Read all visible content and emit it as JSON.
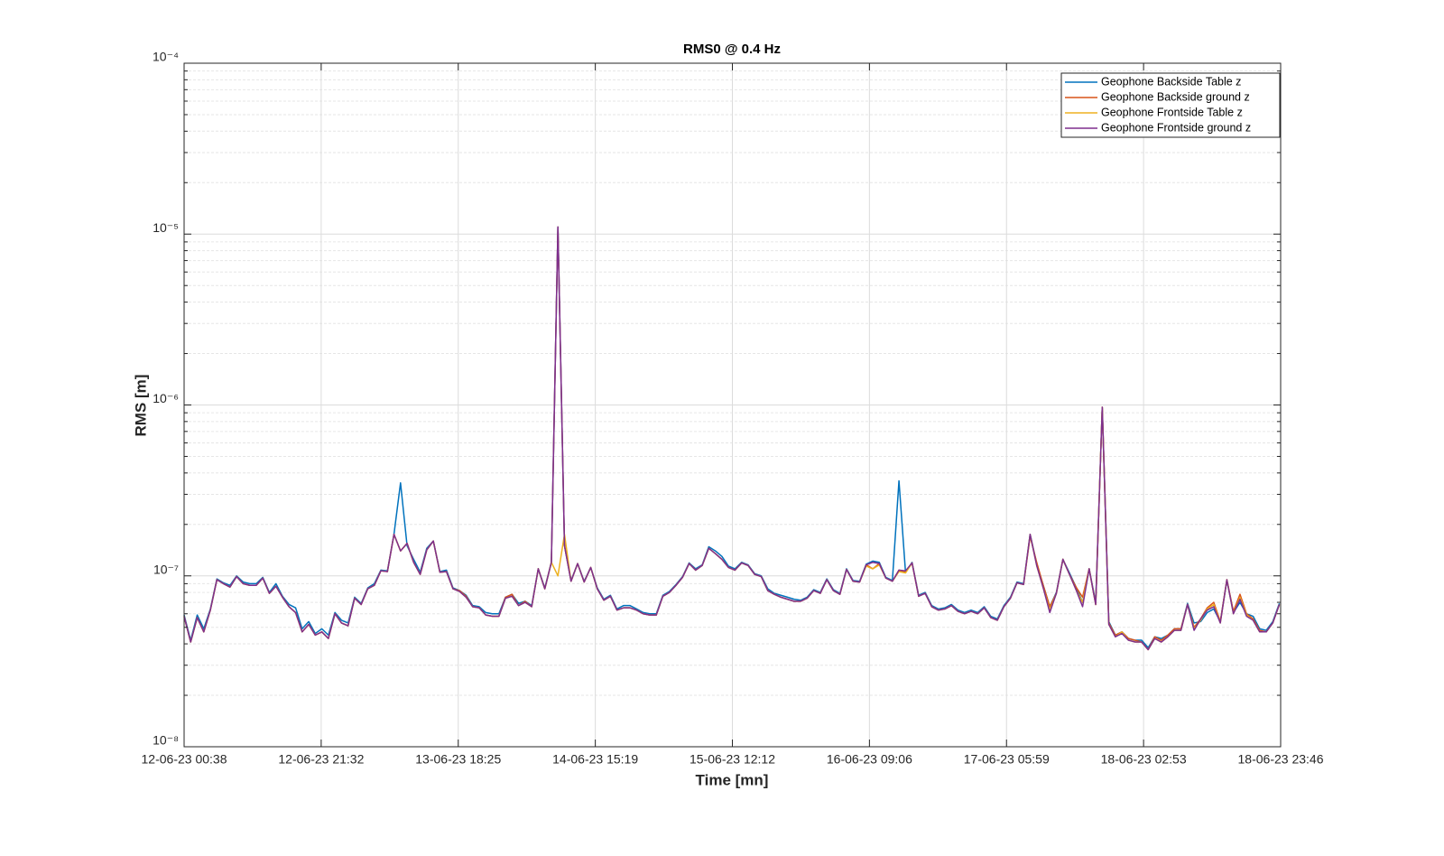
{
  "chart_data": {
    "type": "line",
    "title": "RMS0 @ 0.4 Hz",
    "x_label": "Time [mn]",
    "y_label": "RMS [m]",
    "log_y": true,
    "grid": true,
    "minor_grid": true,
    "legend": "top-right",
    "xlim": [
      0,
      167.2
    ],
    "xticks": [
      {
        "value": 0,
        "label": "12-06-23 00:38"
      },
      {
        "value": 20.9,
        "label": "12-06-23 21:32"
      },
      {
        "value": 41.8,
        "label": "13-06-23 18:25"
      },
      {
        "value": 62.7,
        "label": "14-06-23 15:19"
      },
      {
        "value": 83.6,
        "label": "15-06-23 12:12"
      },
      {
        "value": 104.5,
        "label": "16-06-23 09:06"
      },
      {
        "value": 125.4,
        "label": "17-06-23 05:59"
      },
      {
        "value": 146.3,
        "label": "18-06-23 02:53"
      },
      {
        "value": 167.2,
        "label": "18-06-23 23:46"
      }
    ],
    "ylim": [
      1e-08,
      0.0001
    ],
    "yticks": [
      {
        "value": 1e-08,
        "label": "10⁻⁸"
      },
      {
        "value": 1e-07,
        "label": "10⁻⁷"
      },
      {
        "value": 1e-06,
        "label": "10⁻⁶"
      },
      {
        "value": 1e-05,
        "label": "10⁻⁵"
      },
      {
        "value": 0.0001,
        "label": "10⁻⁴"
      }
    ],
    "x": [
      0,
      1,
      2,
      3,
      4,
      5,
      6,
      7,
      8,
      9,
      10,
      11,
      12,
      13,
      14,
      15,
      16,
      17,
      18,
      19,
      20,
      21,
      22,
      23,
      24,
      25,
      26,
      27,
      28,
      29,
      30,
      31,
      32,
      33,
      34,
      35,
      36,
      37,
      38,
      39,
      40,
      41,
      42,
      43,
      44,
      45,
      46,
      47,
      48,
      49,
      50,
      51,
      52,
      53,
      54,
      55,
      56,
      57,
      58,
      59,
      60,
      61,
      62,
      63,
      64,
      65,
      66,
      67,
      68,
      69,
      70,
      71,
      72,
      73,
      74,
      75,
      76,
      77,
      78,
      79,
      80,
      81,
      82,
      83,
      84,
      85,
      86,
      87,
      88,
      89,
      90,
      91,
      92,
      93,
      94,
      95,
      96,
      97,
      98,
      99,
      100,
      101,
      102,
      103,
      104,
      105,
      106,
      107,
      108,
      109,
      110,
      111,
      112,
      113,
      114,
      115,
      116,
      117,
      118,
      119,
      120,
      121,
      122,
      123,
      124,
      125,
      126,
      127,
      128,
      129,
      130,
      131,
      132,
      133,
      134,
      135,
      136,
      137,
      138,
      139,
      140,
      141,
      142,
      143,
      144,
      145,
      146,
      147,
      148,
      149,
      150,
      151,
      152,
      153,
      154,
      155,
      156,
      157,
      158,
      159,
      160,
      161,
      162,
      163,
      164,
      165,
      166,
      167
    ],
    "series": [
      {
        "name": "Geophone Backside Table z",
        "color": "#0072bd",
        "values": [
          5.9e-08,
          4.2e-08,
          5.9e-08,
          4.9e-08,
          6.4e-08,
          9.6e-08,
          9.1e-08,
          8.8e-08,
          1e-07,
          9.2e-08,
          9e-08,
          9e-08,
          9.8e-08,
          8e-08,
          9e-08,
          7.6e-08,
          6.8e-08,
          6.5e-08,
          4.9e-08,
          5.4e-08,
          4.6e-08,
          4.9e-08,
          4.5e-08,
          6.1e-08,
          5.5e-08,
          5.3e-08,
          7.5e-08,
          6.9e-08,
          8.5e-08,
          9e-08,
          1.08e-07,
          1.07e-07,
          1.75e-07,
          3.5e-07,
          1.5e-07,
          1.25e-07,
          1.05e-07,
          1.45e-07,
          1.6e-07,
          1.06e-07,
          1.08e-07,
          8.5e-08,
          8.2e-08,
          7.7e-08,
          6.7e-08,
          6.6e-08,
          6.1e-08,
          6e-08,
          6e-08,
          7.5e-08,
          7.8e-08,
          6.9e-08,
          7.1e-08,
          6.7e-08,
          1.1e-07,
          8.5e-08,
          1.2e-07,
          1.1e-05,
          1.5e-07,
          9.4e-08,
          1.18e-07,
          9.3e-08,
          1.12e-07,
          8.5e-08,
          7.3e-08,
          7.7e-08,
          6.4e-08,
          6.7e-08,
          6.7e-08,
          6.4e-08,
          6.1e-08,
          6e-08,
          6e-08,
          7.7e-08,
          8.1e-08,
          8.9e-08,
          9.9e-08,
          1.19e-07,
          1.1e-07,
          1.16e-07,
          1.48e-07,
          1.4e-07,
          1.3e-07,
          1.14e-07,
          1.1e-07,
          1.2e-07,
          1.16e-07,
          1.03e-07,
          1e-07,
          8.4e-08,
          7.9e-08,
          7.7e-08,
          7.5e-08,
          7.3e-08,
          7.2e-08,
          7.5e-08,
          8.3e-08,
          8e-08,
          9.6e-08,
          8.3e-08,
          7.9e-08,
          1.1e-07,
          9.4e-08,
          9.3e-08,
          1.17e-07,
          1.22e-07,
          1.2e-07,
          9.8e-08,
          9.4e-08,
          3.6e-07,
          1.05e-07,
          1.2e-07,
          7.7e-08,
          8e-08,
          6.7e-08,
          6.4e-08,
          6.5e-08,
          6.8e-08,
          6.3e-08,
          6.1e-08,
          6.3e-08,
          6.1e-08,
          6.6e-08,
          5.8e-08,
          5.6e-08,
          6.7e-08,
          7.5e-08,
          9.2e-08,
          9e-08,
          1.75e-07,
          1.18e-07,
          8.8e-08,
          6.6e-08,
          8e-08,
          1.25e-07,
          1.04e-07,
          8.6e-08,
          7e-08,
          1.1e-07,
          7e-08,
          9.7e-07,
          5.4e-08,
          4.5e-08,
          4.7e-08,
          4.3e-08,
          4.2e-08,
          4.2e-08,
          3.8e-08,
          4.4e-08,
          4.3e-08,
          4.5e-08,
          4.9e-08,
          4.9e-08,
          6.9e-08,
          5.3e-08,
          5.4e-08,
          6.1e-08,
          6.4e-08,
          5.4e-08,
          9.4e-08,
          6.1e-08,
          7e-08,
          6e-08,
          5.8e-08,
          4.9e-08,
          4.8e-08,
          5.4e-08,
          6.9e-08
        ]
      },
      {
        "name": "Geophone Backside ground z",
        "color": "#d95319",
        "values": [
          5.8e-08,
          4.1e-08,
          5.7e-08,
          4.7e-08,
          6.3e-08,
          9.5e-08,
          9e-08,
          8.6e-08,
          9.9e-08,
          9e-08,
          8.8e-08,
          8.8e-08,
          9.7e-08,
          7.9e-08,
          8.7e-08,
          7.5e-08,
          6.6e-08,
          6.1e-08,
          4.7e-08,
          5.2e-08,
          4.5e-08,
          4.7e-08,
          4.3e-08,
          6e-08,
          5.3e-08,
          5.1e-08,
          7.4e-08,
          6.8e-08,
          8.4e-08,
          8.8e-08,
          1.07e-07,
          1.06e-07,
          1.75e-07,
          1.4e-07,
          1.55e-07,
          1.2e-07,
          1.02e-07,
          1.42e-07,
          1.6e-07,
          1.05e-07,
          1.06e-07,
          8.4e-08,
          8.2e-08,
          7.6e-08,
          6.6e-08,
          6.5e-08,
          5.9e-08,
          5.8e-08,
          5.8e-08,
          7.5e-08,
          7.8e-08,
          6.7e-08,
          7.1e-08,
          6.6e-08,
          1.1e-07,
          8.4e-08,
          1.2e-07,
          1.1e-05,
          1.5e-07,
          9.3e-08,
          1.18e-07,
          9.2e-08,
          1.12e-07,
          8.4e-08,
          7.2e-08,
          7.6e-08,
          6.3e-08,
          6.5e-08,
          6.5e-08,
          6.3e-08,
          6e-08,
          5.9e-08,
          5.9e-08,
          7.6e-08,
          8e-08,
          8.8e-08,
          9.8e-08,
          1.18e-07,
          1.08e-07,
          1.15e-07,
          1.45e-07,
          1.35e-07,
          1.25e-07,
          1.12e-07,
          1.08e-07,
          1.19e-07,
          1.15e-07,
          1.02e-07,
          9.9e-08,
          8.2e-08,
          7.8e-08,
          7.5e-08,
          7.3e-08,
          7.1e-08,
          7.1e-08,
          7.4e-08,
          8.2e-08,
          7.9e-08,
          9.5e-08,
          8.2e-08,
          7.8e-08,
          1.09e-07,
          9.3e-08,
          9.2e-08,
          1.16e-07,
          1.1e-07,
          1.18e-07,
          9.7e-08,
          9.3e-08,
          1.08e-07,
          1.05e-07,
          1.19e-07,
          7.6e-08,
          7.9e-08,
          6.6e-08,
          6.3e-08,
          6.4e-08,
          6.7e-08,
          6.2e-08,
          6e-08,
          6.2e-08,
          6e-08,
          6.5e-08,
          5.7e-08,
          5.5e-08,
          6.6e-08,
          7.4e-08,
          9.1e-08,
          8.9e-08,
          1.7e-07,
          1.2e-07,
          8.8e-08,
          6.6e-08,
          7.9e-08,
          1.25e-07,
          1.02e-07,
          8.6e-08,
          7.5e-08,
          1.1e-07,
          6.8e-08,
          9.7e-07,
          5.3e-08,
          4.5e-08,
          4.7e-08,
          4.3e-08,
          4.2e-08,
          4.1e-08,
          3.7e-08,
          4.4e-08,
          4.2e-08,
          4.5e-08,
          4.9e-08,
          4.9e-08,
          6.8e-08,
          5e-08,
          5.6e-08,
          6.5e-08,
          7e-08,
          5.4e-08,
          9.5e-08,
          6.2e-08,
          7.8e-08,
          6e-08,
          5.6e-08,
          4.8e-08,
          4.7e-08,
          5.3e-08,
          6.8e-08
        ]
      },
      {
        "name": "Geophone Frontside Table z",
        "color": "#edb120",
        "values": [
          5.8e-08,
          4.1e-08,
          5.7e-08,
          4.7e-08,
          6.3e-08,
          9.5e-08,
          9e-08,
          8.6e-08,
          9.9e-08,
          9e-08,
          8.8e-08,
          8.8e-08,
          9.7e-08,
          7.9e-08,
          8.7e-08,
          7.5e-08,
          6.6e-08,
          6.1e-08,
          4.7e-08,
          5.2e-08,
          4.5e-08,
          4.7e-08,
          4.3e-08,
          6e-08,
          5.3e-08,
          5.1e-08,
          7.4e-08,
          6.8e-08,
          8.4e-08,
          8.8e-08,
          1.07e-07,
          1.06e-07,
          1.75e-07,
          1.4e-07,
          1.55e-07,
          1.2e-07,
          1.02e-07,
          1.42e-07,
          1.6e-07,
          1.05e-07,
          1.06e-07,
          8.4e-08,
          8.1e-08,
          7.5e-08,
          6.6e-08,
          6.5e-08,
          5.9e-08,
          5.8e-08,
          5.8e-08,
          7.4e-08,
          7.6e-08,
          6.7e-08,
          7e-08,
          6.6e-08,
          1.1e-07,
          8.4e-08,
          1.2e-07,
          1e-07,
          1.75e-07,
          9.3e-08,
          1.18e-07,
          9.2e-08,
          1.12e-07,
          8.4e-08,
          7.2e-08,
          7.6e-08,
          6.3e-08,
          6.5e-08,
          6.5e-08,
          6.3e-08,
          6e-08,
          5.9e-08,
          5.9e-08,
          7.6e-08,
          8e-08,
          8.8e-08,
          9.8e-08,
          1.18e-07,
          1.08e-07,
          1.15e-07,
          1.45e-07,
          1.35e-07,
          1.25e-07,
          1.12e-07,
          1.08e-07,
          1.19e-07,
          1.15e-07,
          1.02e-07,
          9.9e-08,
          8.2e-08,
          7.8e-08,
          7.5e-08,
          7.3e-08,
          7.1e-08,
          7.1e-08,
          7.4e-08,
          8.2e-08,
          7.9e-08,
          9.5e-08,
          8.2e-08,
          7.8e-08,
          1.09e-07,
          9.3e-08,
          9.2e-08,
          1.14e-07,
          1.1e-07,
          1.16e-07,
          9.7e-08,
          9.3e-08,
          1.06e-07,
          1.04e-07,
          1.19e-07,
          7.6e-08,
          7.9e-08,
          6.6e-08,
          6.3e-08,
          6.4e-08,
          6.7e-08,
          6.2e-08,
          6e-08,
          6.2e-08,
          6e-08,
          6.5e-08,
          5.7e-08,
          5.5e-08,
          6.6e-08,
          7.4e-08,
          9.1e-08,
          8.9e-08,
          1.75e-07,
          1.15e-07,
          8.5e-08,
          6.3e-08,
          7.9e-08,
          1.25e-07,
          1.02e-07,
          8.3e-08,
          7e-08,
          1.1e-07,
          6.8e-08,
          9.7e-07,
          5.2e-08,
          4.4e-08,
          4.7e-08,
          4.2e-08,
          4.1e-08,
          4.1e-08,
          3.7e-08,
          4.3e-08,
          4.1e-08,
          4.4e-08,
          4.8e-08,
          4.8e-08,
          6.8e-08,
          4.9e-08,
          5.5e-08,
          6.4e-08,
          6.8e-08,
          5.3e-08,
          9.5e-08,
          6e-08,
          7.5e-08,
          5.9e-08,
          5.5e-08,
          4.7e-08,
          4.7e-08,
          5.3e-08,
          6.8e-08
        ]
      },
      {
        "name": "Geophone Frontside ground z",
        "color": "#7e2f8e",
        "values": [
          5.8e-08,
          4.1e-08,
          5.7e-08,
          4.7e-08,
          6.3e-08,
          9.5e-08,
          9e-08,
          8.6e-08,
          9.9e-08,
          9e-08,
          8.8e-08,
          8.8e-08,
          9.7e-08,
          7.9e-08,
          8.7e-08,
          7.5e-08,
          6.6e-08,
          6.1e-08,
          4.7e-08,
          5.2e-08,
          4.5e-08,
          4.7e-08,
          4.3e-08,
          6e-08,
          5.3e-08,
          5.1e-08,
          7.4e-08,
          6.8e-08,
          8.4e-08,
          8.8e-08,
          1.07e-07,
          1.06e-07,
          1.75e-07,
          1.4e-07,
          1.55e-07,
          1.2e-07,
          1.02e-07,
          1.42e-07,
          1.6e-07,
          1.05e-07,
          1.06e-07,
          8.4e-08,
          8.1e-08,
          7.5e-08,
          6.6e-08,
          6.5e-08,
          5.9e-08,
          5.8e-08,
          5.8e-08,
          7.4e-08,
          7.6e-08,
          6.7e-08,
          7e-08,
          6.6e-08,
          1.1e-07,
          8.4e-08,
          1.2e-07,
          1.1e-05,
          1.5e-07,
          9.3e-08,
          1.18e-07,
          9.2e-08,
          1.12e-07,
          8.4e-08,
          7.2e-08,
          7.6e-08,
          6.3e-08,
          6.5e-08,
          6.5e-08,
          6.3e-08,
          6e-08,
          5.9e-08,
          5.9e-08,
          7.6e-08,
          8e-08,
          8.8e-08,
          9.8e-08,
          1.18e-07,
          1.08e-07,
          1.15e-07,
          1.45e-07,
          1.35e-07,
          1.25e-07,
          1.12e-07,
          1.08e-07,
          1.19e-07,
          1.15e-07,
          1.02e-07,
          9.9e-08,
          8.2e-08,
          7.8e-08,
          7.5e-08,
          7.3e-08,
          7.1e-08,
          7.1e-08,
          7.4e-08,
          8.2e-08,
          7.9e-08,
          9.5e-08,
          8.2e-08,
          7.8e-08,
          1.09e-07,
          9.3e-08,
          9.2e-08,
          1.16e-07,
          1.2e-07,
          1.18e-07,
          9.7e-08,
          9.3e-08,
          1.08e-07,
          1.07e-07,
          1.19e-07,
          7.6e-08,
          7.9e-08,
          6.6e-08,
          6.3e-08,
          6.4e-08,
          6.7e-08,
          6.2e-08,
          6e-08,
          6.2e-08,
          6e-08,
          6.5e-08,
          5.7e-08,
          5.5e-08,
          6.6e-08,
          7.4e-08,
          9.1e-08,
          8.9e-08,
          1.75e-07,
          1.15e-07,
          8.5e-08,
          6.1e-08,
          7.9e-08,
          1.25e-07,
          1.02e-07,
          8.3e-08,
          6.6e-08,
          1.1e-07,
          6.8e-08,
          9.7e-07,
          5.2e-08,
          4.4e-08,
          4.6e-08,
          4.2e-08,
          4.1e-08,
          4.1e-08,
          3.7e-08,
          4.3e-08,
          4.1e-08,
          4.4e-08,
          4.8e-08,
          4.8e-08,
          6.8e-08,
          4.8e-08,
          5.6e-08,
          6.3e-08,
          6.6e-08,
          5.3e-08,
          9.5e-08,
          6e-08,
          7.3e-08,
          5.8e-08,
          5.5e-08,
          4.7e-08,
          4.7e-08,
          5.3e-08,
          6.8e-08
        ]
      }
    ]
  }
}
